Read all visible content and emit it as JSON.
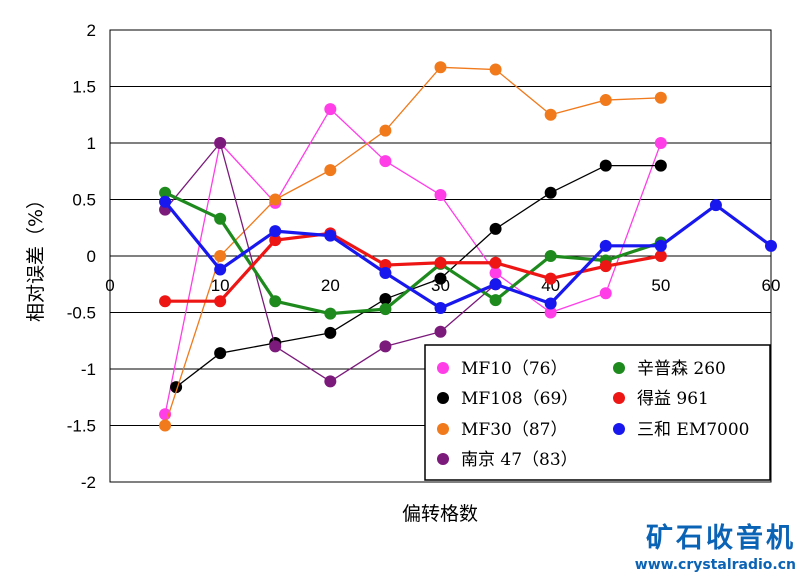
{
  "chart_data": {
    "type": "line",
    "xlabel": "偏转格数",
    "ylabel": "相对误差（%）",
    "xlim": [
      0,
      60
    ],
    "ylim": [
      -2,
      2
    ],
    "x_ticks": [
      "0",
      "10",
      "20",
      "30",
      "40",
      "50",
      "60"
    ],
    "y_ticks": [
      "2",
      "1.5",
      "1",
      "0.5",
      "0",
      "-0.5",
      "-1",
      "-1.5",
      "-2"
    ],
    "grid": "horizontal",
    "legend_position": "bottom-right",
    "series": [
      {
        "name": "MF10（76）",
        "color": "#ff3ee8",
        "points": [
          [
            5,
            -1.4
          ],
          [
            10,
            1.0
          ],
          [
            15,
            0.47
          ],
          [
            20,
            1.3
          ],
          [
            25,
            0.84
          ],
          [
            30,
            0.54
          ],
          [
            35,
            -0.15
          ],
          [
            40,
            -0.5
          ],
          [
            45,
            -0.33
          ],
          [
            50,
            1.0
          ]
        ]
      },
      {
        "name": "MF108（69）",
        "color": "#000000",
        "points": [
          [
            6,
            -1.16
          ],
          [
            10,
            -0.86
          ],
          [
            15,
            -0.77
          ],
          [
            20,
            -0.68
          ],
          [
            25,
            -0.38
          ],
          [
            30,
            -0.2
          ],
          [
            35,
            0.24
          ],
          [
            40,
            0.56
          ],
          [
            45,
            0.8
          ],
          [
            50,
            0.8
          ]
        ]
      },
      {
        "name": "MF30（87）",
        "color": "#f07a1c",
        "points": [
          [
            5,
            -1.5
          ],
          [
            10,
            0.0
          ],
          [
            15,
            0.5
          ],
          [
            20,
            0.76
          ],
          [
            25,
            1.11
          ],
          [
            30,
            1.67
          ],
          [
            35,
            1.65
          ],
          [
            40,
            1.25
          ],
          [
            45,
            1.38
          ],
          [
            50,
            1.4
          ]
        ]
      },
      {
        "name": "南京 47（83）",
        "color": "#7b1a7b",
        "points": [
          [
            5,
            0.41
          ],
          [
            10,
            1.0
          ],
          [
            15,
            -0.8
          ],
          [
            20,
            -1.11
          ],
          [
            25,
            -0.8
          ],
          [
            30,
            -0.67
          ],
          [
            35,
            -0.25
          ]
        ]
      },
      {
        "name": "辛普森 260",
        "color": "#1e8a1e",
        "points": [
          [
            5,
            0.56
          ],
          [
            10,
            0.33
          ],
          [
            15,
            -0.4
          ],
          [
            20,
            -0.51
          ],
          [
            25,
            -0.47
          ],
          [
            30,
            -0.07
          ],
          [
            35,
            -0.39
          ],
          [
            40,
            0.0
          ],
          [
            45,
            -0.04
          ],
          [
            50,
            0.12
          ]
        ]
      },
      {
        "name": "得益 961",
        "color": "#ee1515",
        "points": [
          [
            5,
            -0.4
          ],
          [
            10,
            -0.4
          ],
          [
            15,
            0.14
          ],
          [
            20,
            0.2
          ],
          [
            25,
            -0.08
          ],
          [
            30,
            -0.06
          ],
          [
            35,
            -0.06
          ],
          [
            40,
            -0.2
          ],
          [
            45,
            -0.09
          ],
          [
            50,
            0.0
          ]
        ]
      },
      {
        "name": "三和 EM7000",
        "color": "#1818ee",
        "points": [
          [
            5,
            0.48
          ],
          [
            10,
            -0.12
          ],
          [
            15,
            0.22
          ],
          [
            20,
            0.18
          ],
          [
            25,
            -0.15
          ],
          [
            30,
            -0.46
          ],
          [
            35,
            -0.25
          ],
          [
            40,
            -0.42
          ],
          [
            45,
            0.09
          ],
          [
            50,
            0.09
          ],
          [
            55,
            0.45
          ],
          [
            60,
            0.09
          ]
        ]
      }
    ]
  },
  "watermark": {
    "brand": "矿石收音机",
    "url": "www.crystalradio.cn"
  }
}
